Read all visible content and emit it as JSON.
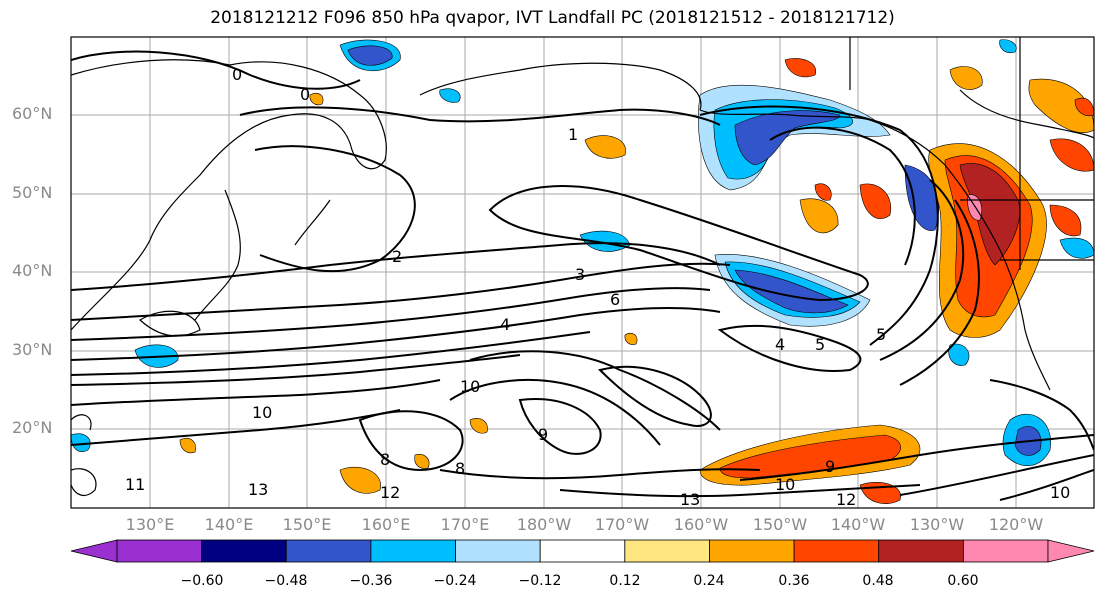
{
  "title": "2018121212 F096 850 hPa qvapor, IVT Landfall PC (2018121512 - 2018121712)",
  "lat_labels": [
    "60°N",
    "50°N",
    "40°N",
    "30°N",
    "20°N"
  ],
  "lon_labels": [
    "130°E",
    "140°E",
    "150°E",
    "160°E",
    "170°E",
    "180°W",
    "170°W",
    "160°W",
    "150°W",
    "140°W",
    "130°W",
    "120°W"
  ],
  "contour_labels": [
    "0",
    "0",
    "1",
    "2",
    "3",
    "4",
    "4",
    "5",
    "5",
    "6",
    "8",
    "8",
    "9",
    "9",
    "10",
    "10",
    "10",
    "10",
    "11",
    "12",
    "12",
    "13",
    "13"
  ],
  "colorbar": {
    "colors": [
      "#9b30d0",
      "#000080",
      "#3355cc",
      "#00bfff",
      "#b0e2ff",
      "#ffffff",
      "#ffe680",
      "#ffa500",
      "#ff4500",
      "#b22222",
      "#ff88b0"
    ],
    "tick_labels": [
      "−0.60",
      "−0.48",
      "−0.36",
      "−0.24",
      "−0.12",
      "0.12",
      "0.24",
      "0.36",
      "0.48",
      "0.60"
    ]
  },
  "colors": {
    "positive_strong": "#ff4500",
    "positive_mid": "#ffa500",
    "positive_weak": "#ffe680",
    "negative_weak": "#b0e2ff",
    "negative_mid": "#00bfff",
    "negative_strong": "#3355cc",
    "gridline": "#aaaaaa",
    "axis_label": "#8a8a8a"
  }
}
